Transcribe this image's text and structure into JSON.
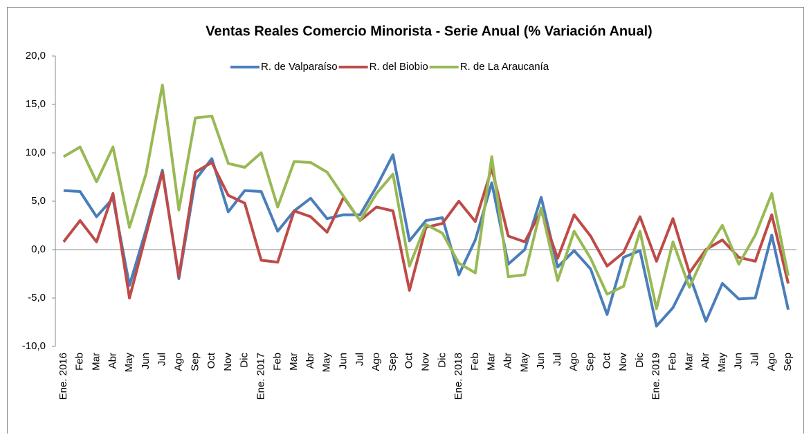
{
  "chart_data": {
    "type": "line",
    "title": "Ventas Reales Comercio Minorista - Serie Anual (% Variación Anual)",
    "categories": [
      "Ene. 2016",
      "Feb",
      "Mar",
      "Abr",
      "May",
      "Jun",
      "Jul",
      "Ago",
      "Sep",
      "Oct",
      "Nov",
      "Dic",
      "Ene. 2017",
      "Feb",
      "Mar",
      "Abr",
      "May",
      "Jun",
      "Jul",
      "Ago",
      "Sep",
      "Oct",
      "Nov",
      "Dic",
      "Ene. 2018",
      "Feb",
      "Mar",
      "Abr",
      "May",
      "Jun",
      "Jul",
      "Ago",
      "Sep",
      "Oct",
      "Nov",
      "Dic",
      "Ene. 2019",
      "Feb",
      "Mar",
      "Abr",
      "May",
      "Jun",
      "Jul",
      "Ago",
      "Sep"
    ],
    "series": [
      {
        "name": "R. de Valparaíso",
        "color": "#4a7ebb",
        "values": [
          6.1,
          6.0,
          3.4,
          5.3,
          -3.7,
          2.0,
          8.2,
          -3.0,
          7.2,
          9.4,
          3.9,
          6.1,
          6.0,
          1.9,
          4.0,
          5.3,
          3.2,
          3.6,
          3.6,
          6.5,
          9.8,
          0.9,
          3.0,
          3.3,
          -2.6,
          1.0,
          6.9,
          -1.5,
          0.0,
          5.4,
          -1.8,
          -0.1,
          -2.0,
          -6.7,
          -0.8,
          -0.1,
          -7.9,
          -6.0,
          -2.6,
          -7.4,
          -3.5,
          -5.1,
          -5.0,
          1.5,
          -6.2
        ]
      },
      {
        "name": "R. del Biobio",
        "color": "#be4b48",
        "values": [
          0.8,
          3.0,
          0.8,
          5.8,
          -5.0,
          1.5,
          8.0,
          -2.8,
          8.0,
          9.0,
          5.6,
          4.8,
          -1.1,
          -1.3,
          4.0,
          3.4,
          1.8,
          5.4,
          3.0,
          4.4,
          4.0,
          -4.2,
          2.3,
          2.7,
          5.0,
          2.9,
          8.4,
          1.4,
          0.8,
          4.0,
          -0.9,
          3.6,
          1.4,
          -1.7,
          -0.3,
          3.4,
          -1.2,
          3.2,
          -2.4,
          0.0,
          1.0,
          -0.8,
          -1.2,
          3.6,
          -3.5
        ]
      },
      {
        "name": "R. de La Araucanía",
        "color": "#98b954",
        "values": [
          9.6,
          10.6,
          7.0,
          10.6,
          2.3,
          7.8,
          17.0,
          4.1,
          13.6,
          13.8,
          8.9,
          8.5,
          10.0,
          4.4,
          9.1,
          9.0,
          8.0,
          5.5,
          3.0,
          5.8,
          7.8,
          -1.7,
          2.6,
          1.7,
          -1.4,
          -2.4,
          9.6,
          -2.8,
          -2.6,
          4.3,
          -3.2,
          1.9,
          -0.9,
          -4.6,
          -3.8,
          1.9,
          -6.1,
          0.8,
          -3.9,
          -0.2,
          2.5,
          -1.5,
          1.5,
          5.8,
          -2.7
        ]
      }
    ],
    "ylim": [
      -10,
      20
    ],
    "yticks": [
      {
        "value": -10,
        "label": "-10,0"
      },
      {
        "value": -5,
        "label": "-5,0"
      },
      {
        "value": 0,
        "label": "0,0"
      },
      {
        "value": 5,
        "label": "5,0"
      },
      {
        "value": 10,
        "label": "10,0"
      },
      {
        "value": 15,
        "label": "15,0"
      },
      {
        "value": 20,
        "label": "20,0"
      }
    ],
    "grid": false,
    "legend": "top"
  }
}
